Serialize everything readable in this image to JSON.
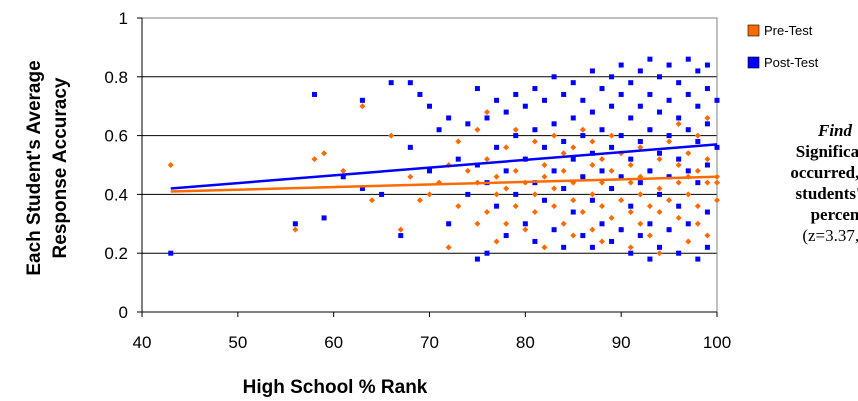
{
  "chart_data": {
    "type": "scatter",
    "xlabel": "High School % Rank",
    "ylabel_lines": [
      "Each Student's Average",
      "Response Accuracy"
    ],
    "xlim": [
      40,
      100
    ],
    "ylim": [
      0,
      1
    ],
    "x_ticks": [
      40,
      50,
      60,
      70,
      80,
      90,
      100
    ],
    "y_ticks": [
      0,
      0.2,
      0.4,
      0.6,
      0.8,
      1
    ],
    "y_tick_labels": [
      "0",
      "0.2",
      "0.4",
      "0.6",
      "0.8",
      "1"
    ],
    "grid": "horizontal",
    "legend_position": "top-right",
    "series": [
      {
        "name": "Pre-Test",
        "color": "#ff6a00",
        "marker": "diamond",
        "trendline": [
          [
            43,
            0.41
          ],
          [
            100,
            0.46
          ]
        ],
        "points": [
          [
            43,
            0.5
          ],
          [
            56,
            0.28
          ],
          [
            58,
            0.52
          ],
          [
            59,
            0.54
          ],
          [
            61,
            0.48
          ],
          [
            63,
            0.7
          ],
          [
            64,
            0.38
          ],
          [
            66,
            0.6
          ],
          [
            67,
            0.28
          ],
          [
            68,
            0.46
          ],
          [
            69,
            0.38
          ],
          [
            70,
            0.4
          ],
          [
            71,
            0.44
          ],
          [
            72,
            0.22
          ],
          [
            72,
            0.5
          ],
          [
            73,
            0.58
          ],
          [
            73,
            0.36
          ],
          [
            74,
            0.48
          ],
          [
            75,
            0.3
          ],
          [
            75,
            0.44
          ],
          [
            75,
            0.62
          ],
          [
            76,
            0.52
          ],
          [
            76,
            0.34
          ],
          [
            76,
            0.68
          ],
          [
            77,
            0.4
          ],
          [
            77,
            0.46
          ],
          [
            77,
            0.24
          ],
          [
            78,
            0.56
          ],
          [
            78,
            0.42
          ],
          [
            78,
            0.3
          ],
          [
            79,
            0.48
          ],
          [
            79,
            0.36
          ],
          [
            79,
            0.62
          ],
          [
            80,
            0.44
          ],
          [
            80,
            0.28
          ],
          [
            80,
            0.52
          ],
          [
            81,
            0.4
          ],
          [
            81,
            0.58
          ],
          [
            81,
            0.34
          ],
          [
            82,
            0.46
          ],
          [
            82,
            0.22
          ],
          [
            82,
            0.5
          ],
          [
            83,
            0.42
          ],
          [
            83,
            0.6
          ],
          [
            83,
            0.36
          ],
          [
            84,
            0.48
          ],
          [
            84,
            0.3
          ],
          [
            84,
            0.54
          ],
          [
            85,
            0.44
          ],
          [
            85,
            0.38
          ],
          [
            85,
            0.26
          ],
          [
            85,
            0.56
          ],
          [
            86,
            0.46
          ],
          [
            86,
            0.34
          ],
          [
            86,
            0.62
          ],
          [
            87,
            0.4
          ],
          [
            87,
            0.5
          ],
          [
            87,
            0.28
          ],
          [
            87,
            0.58
          ],
          [
            88,
            0.44
          ],
          [
            88,
            0.36
          ],
          [
            88,
            0.52
          ],
          [
            88,
            0.24
          ],
          [
            89,
            0.48
          ],
          [
            89,
            0.42
          ],
          [
            89,
            0.32
          ],
          [
            89,
            0.6
          ],
          [
            90,
            0.46
          ],
          [
            90,
            0.38
          ],
          [
            90,
            0.54
          ],
          [
            90,
            0.28
          ],
          [
            91,
            0.44
          ],
          [
            91,
            0.5
          ],
          [
            91,
            0.34
          ],
          [
            91,
            0.22
          ],
          [
            92,
            0.46
          ],
          [
            92,
            0.4
          ],
          [
            92,
            0.56
          ],
          [
            92,
            0.3
          ],
          [
            93,
            0.48
          ],
          [
            93,
            0.36
          ],
          [
            93,
            0.62
          ],
          [
            93,
            0.26
          ],
          [
            94,
            0.42
          ],
          [
            94,
            0.52
          ],
          [
            94,
            0.34
          ],
          [
            94,
            0.2
          ],
          [
            95,
            0.46
          ],
          [
            95,
            0.38
          ],
          [
            95,
            0.58
          ],
          [
            95,
            0.28
          ],
          [
            96,
            0.44
          ],
          [
            96,
            0.5
          ],
          [
            96,
            0.32
          ],
          [
            96,
            0.64
          ],
          [
            97,
            0.46
          ],
          [
            97,
            0.4
          ],
          [
            97,
            0.54
          ],
          [
            97,
            0.24
          ],
          [
            98,
            0.48
          ],
          [
            98,
            0.36
          ],
          [
            98,
            0.6
          ],
          [
            98,
            0.3
          ],
          [
            99,
            0.44
          ],
          [
            99,
            0.52
          ],
          [
            99,
            0.26
          ],
          [
            99,
            0.66
          ],
          [
            100,
            0.46
          ],
          [
            100,
            0.38
          ],
          [
            100,
            0.44
          ]
        ]
      },
      {
        "name": "Post-Test",
        "color": "#0000ff",
        "marker": "square",
        "trendline": [
          [
            43,
            0.42
          ],
          [
            100,
            0.57
          ]
        ],
        "points": [
          [
            43,
            0.2
          ],
          [
            56,
            0.3
          ],
          [
            58,
            0.74
          ],
          [
            59,
            0.32
          ],
          [
            61,
            0.46
          ],
          [
            63,
            0.72
          ],
          [
            63,
            0.42
          ],
          [
            65,
            0.4
          ],
          [
            66,
            0.78
          ],
          [
            67,
            0.26
          ],
          [
            68,
            0.78
          ],
          [
            68,
            0.56
          ],
          [
            69,
            0.74
          ],
          [
            70,
            0.7
          ],
          [
            70,
            0.48
          ],
          [
            71,
            0.62
          ],
          [
            72,
            0.3
          ],
          [
            72,
            0.66
          ],
          [
            73,
            0.52
          ],
          [
            74,
            0.64
          ],
          [
            74,
            0.4
          ],
          [
            75,
            0.76
          ],
          [
            75,
            0.5
          ],
          [
            75,
            0.18
          ],
          [
            76,
            0.66
          ],
          [
            76,
            0.44
          ],
          [
            76,
            0.2
          ],
          [
            77,
            0.72
          ],
          [
            77,
            0.56
          ],
          [
            77,
            0.36
          ],
          [
            78,
            0.68
          ],
          [
            78,
            0.48
          ],
          [
            78,
            0.26
          ],
          [
            79,
            0.74
          ],
          [
            79,
            0.6
          ],
          [
            79,
            0.4
          ],
          [
            80,
            0.7
          ],
          [
            80,
            0.52
          ],
          [
            80,
            0.3
          ],
          [
            81,
            0.76
          ],
          [
            81,
            0.62
          ],
          [
            81,
            0.44
          ],
          [
            81,
            0.24
          ],
          [
            82,
            0.72
          ],
          [
            82,
            0.56
          ],
          [
            82,
            0.38
          ],
          [
            83,
            0.8
          ],
          [
            83,
            0.64
          ],
          [
            83,
            0.48
          ],
          [
            83,
            0.28
          ],
          [
            84,
            0.74
          ],
          [
            84,
            0.58
          ],
          [
            84,
            0.42
          ],
          [
            84,
            0.22
          ],
          [
            85,
            0.78
          ],
          [
            85,
            0.66
          ],
          [
            85,
            0.52
          ],
          [
            85,
            0.34
          ],
          [
            86,
            0.72
          ],
          [
            86,
            0.6
          ],
          [
            86,
            0.46
          ],
          [
            86,
            0.26
          ],
          [
            87,
            0.82
          ],
          [
            87,
            0.68
          ],
          [
            87,
            0.54
          ],
          [
            87,
            0.38
          ],
          [
            87,
            0.22
          ],
          [
            88,
            0.76
          ],
          [
            88,
            0.62
          ],
          [
            88,
            0.48
          ],
          [
            88,
            0.3
          ],
          [
            89,
            0.8
          ],
          [
            89,
            0.7
          ],
          [
            89,
            0.56
          ],
          [
            89,
            0.42
          ],
          [
            89,
            0.24
          ],
          [
            90,
            0.84
          ],
          [
            90,
            0.74
          ],
          [
            90,
            0.6
          ],
          [
            90,
            0.46
          ],
          [
            90,
            0.28
          ],
          [
            91,
            0.78
          ],
          [
            91,
            0.66
          ],
          [
            91,
            0.52
          ],
          [
            91,
            0.36
          ],
          [
            91,
            0.2
          ],
          [
            92,
            0.82
          ],
          [
            92,
            0.7
          ],
          [
            92,
            0.58
          ],
          [
            92,
            0.44
          ],
          [
            92,
            0.26
          ],
          [
            93,
            0.86
          ],
          [
            93,
            0.74
          ],
          [
            93,
            0.62
          ],
          [
            93,
            0.48
          ],
          [
            93,
            0.3
          ],
          [
            93,
            0.18
          ],
          [
            94,
            0.8
          ],
          [
            94,
            0.68
          ],
          [
            94,
            0.54
          ],
          [
            94,
            0.4
          ],
          [
            94,
            0.22
          ],
          [
            95,
            0.84
          ],
          [
            95,
            0.72
          ],
          [
            95,
            0.6
          ],
          [
            95,
            0.46
          ],
          [
            95,
            0.28
          ],
          [
            96,
            0.78
          ],
          [
            96,
            0.66
          ],
          [
            96,
            0.52
          ],
          [
            96,
            0.36
          ],
          [
            96,
            0.2
          ],
          [
            97,
            0.86
          ],
          [
            97,
            0.74
          ],
          [
            97,
            0.62
          ],
          [
            97,
            0.48
          ],
          [
            97,
            0.3
          ],
          [
            98,
            0.82
          ],
          [
            98,
            0.7
          ],
          [
            98,
            0.58
          ],
          [
            98,
            0.44
          ],
          [
            98,
            0.18
          ],
          [
            99,
            0.84
          ],
          [
            99,
            0.76
          ],
          [
            99,
            0.64
          ],
          [
            99,
            0.5
          ],
          [
            99,
            0.34
          ],
          [
            99,
            0.22
          ],
          [
            100,
            0.72
          ],
          [
            100,
            0.56
          ]
        ]
      }
    ]
  },
  "finding": {
    "title": "Find",
    "line1": "Significant",
    "line2": "occurred, co",
    "line3": "students' h",
    "line4": "percen",
    "stat": "(z=3.37, ,"
  }
}
